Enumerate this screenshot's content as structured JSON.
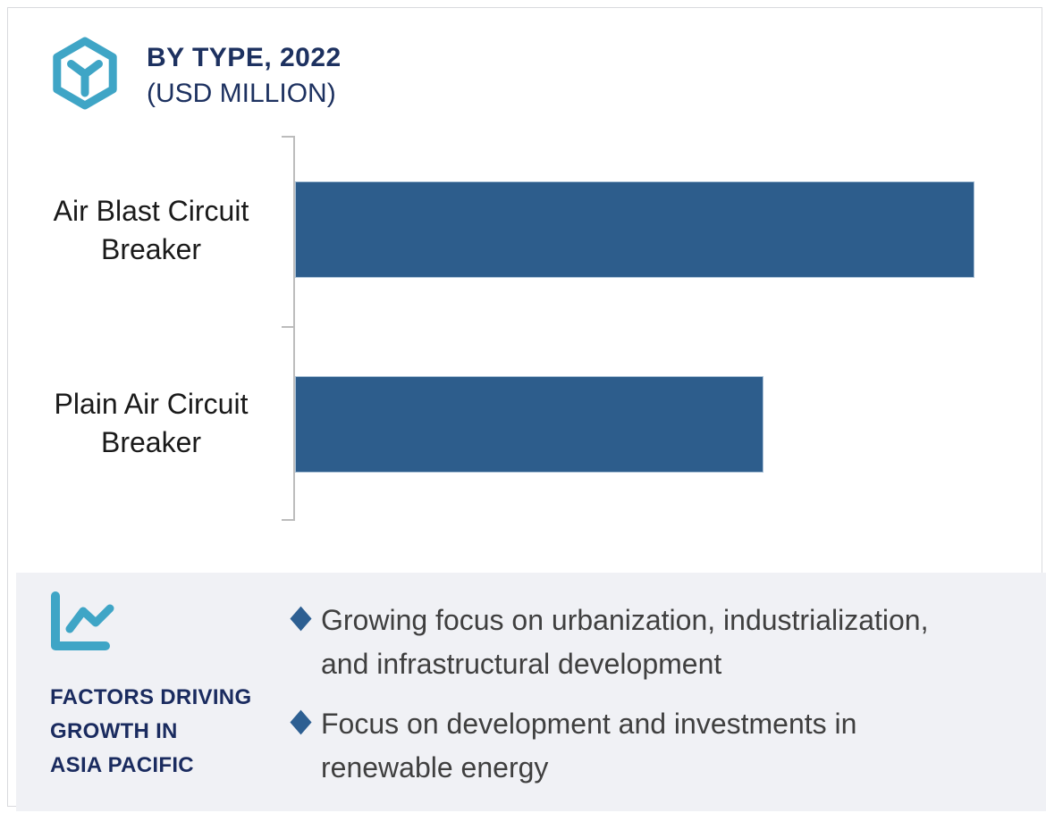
{
  "page": {
    "background": "#ffffff",
    "card_border_color": "#d9dade"
  },
  "header": {
    "icon": "hexagon-cube-icon",
    "icon_color": "#3fa5c6",
    "title_line1": "BY TYPE, 2022",
    "title_line2": "(USD MILLION)",
    "title_color": "#1d3160"
  },
  "chart_data": {
    "type": "bar",
    "orientation": "horizontal",
    "title": "BY TYPE, 2022 (USD MILLION)",
    "categories": [
      "Air Blast Circuit Breaker",
      "Plain Air Circuit Breaker"
    ],
    "values_pct_of_max": [
      100,
      69
    ],
    "value_axis": {
      "numeric_labels_visible": false,
      "gridlines": false
    },
    "legend_position": "none",
    "bar_color": "#2d5d8c",
    "axis_color": "#bcbcbc",
    "tick_marks": 3
  },
  "chart_display": {
    "row_labels_multiline": [
      "Air Blast Circuit\nBreaker",
      "Plain Air Circuit\nBreaker"
    ]
  },
  "panel": {
    "background": "#f0f1f5",
    "icon": "line-chart-icon",
    "icon_color": "#3fa5c6",
    "heading": "FACTORS DRIVING\nGROWTH IN\nASIA PACIFIC",
    "heading_color": "#1a2b5f",
    "bullet_marker": "diamond",
    "bullet_marker_color": "#2d5f92",
    "bullet_text_color": "#3f3f3f",
    "bullets": [
      "Growing focus on urbanization, industrialization,\nand infrastructural development",
      "Focus on development and investments in\nrenewable energy"
    ]
  }
}
